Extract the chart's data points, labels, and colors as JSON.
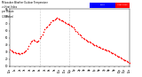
{
  "background_color": "#ffffff",
  "dot_color": "#ff0000",
  "dot_size": 1.2,
  "ylim": [
    10,
    90
  ],
  "xlim": [
    0,
    1440
  ],
  "vlines": [
    360,
    720
  ],
  "vline_color": "#999999",
  "vline_style": ":",
  "x_tick_positions": [
    0,
    60,
    120,
    180,
    240,
    300,
    360,
    420,
    480,
    540,
    600,
    660,
    720,
    780,
    840,
    900,
    960,
    1020,
    1080,
    1140,
    1200,
    1260,
    1320,
    1380,
    1440
  ],
  "x_tick_labels": [
    "12a",
    "1a",
    "2a",
    "3a",
    "4a",
    "5a",
    "6a",
    "7a",
    "8a",
    "9a",
    "10a",
    "11a",
    "12p",
    "1p",
    "2p",
    "3p",
    "4p",
    "5p",
    "6p",
    "7p",
    "8p",
    "9p",
    "10p",
    "11p",
    "12a"
  ],
  "y_tick_positions": [
    10,
    20,
    30,
    40,
    50,
    60,
    70,
    80,
    90
  ],
  "y_tick_labels": [
    "10",
    "20",
    "30",
    "40",
    "50",
    "60",
    "70",
    "80",
    "90"
  ],
  "title_lines": [
    "Milwaukee Weather Outdoor Temperature",
    "vs Heat Index",
    "per Minute",
    "(24 Hours)"
  ],
  "legend_blue_label": "Temp",
  "legend_red_label": "Heat Index",
  "data_x": [
    0,
    15,
    30,
    45,
    60,
    75,
    90,
    105,
    120,
    135,
    150,
    165,
    180,
    195,
    210,
    225,
    240,
    255,
    270,
    285,
    300,
    315,
    330,
    345,
    360,
    375,
    390,
    405,
    420,
    435,
    450,
    465,
    480,
    495,
    510,
    525,
    540,
    555,
    570,
    585,
    600,
    615,
    630,
    645,
    660,
    675,
    690,
    705,
    720,
    735,
    750,
    765,
    780,
    795,
    810,
    825,
    840,
    855,
    870,
    885,
    900,
    915,
    930,
    945,
    960,
    975,
    990,
    1005,
    1020,
    1035,
    1050,
    1065,
    1080,
    1095,
    1110,
    1125,
    1140,
    1155,
    1170,
    1185,
    1200,
    1215,
    1230,
    1245,
    1260,
    1275,
    1290,
    1305,
    1320,
    1335,
    1350,
    1365,
    1380,
    1395,
    1410,
    1425,
    1440
  ],
  "data_y": [
    33,
    32,
    31,
    30,
    30,
    29,
    28,
    28,
    27,
    28,
    29,
    30,
    31,
    32,
    35,
    38,
    42,
    44,
    46,
    47,
    46,
    45,
    45,
    46,
    50,
    52,
    55,
    58,
    62,
    64,
    66,
    68,
    70,
    72,
    74,
    75,
    76,
    77,
    78,
    77,
    76,
    75,
    74,
    73,
    72,
    71,
    70,
    69,
    68,
    67,
    66,
    64,
    62,
    60,
    58,
    56,
    55,
    53,
    51,
    50,
    48,
    47,
    46,
    45,
    44,
    43,
    42,
    41,
    40,
    39,
    38,
    37,
    37,
    36,
    35,
    35,
    34,
    33,
    32,
    32,
    31,
    30,
    29,
    28,
    27,
    26,
    25,
    24,
    23,
    22,
    21,
    20,
    19,
    18,
    17,
    16,
    15
  ]
}
